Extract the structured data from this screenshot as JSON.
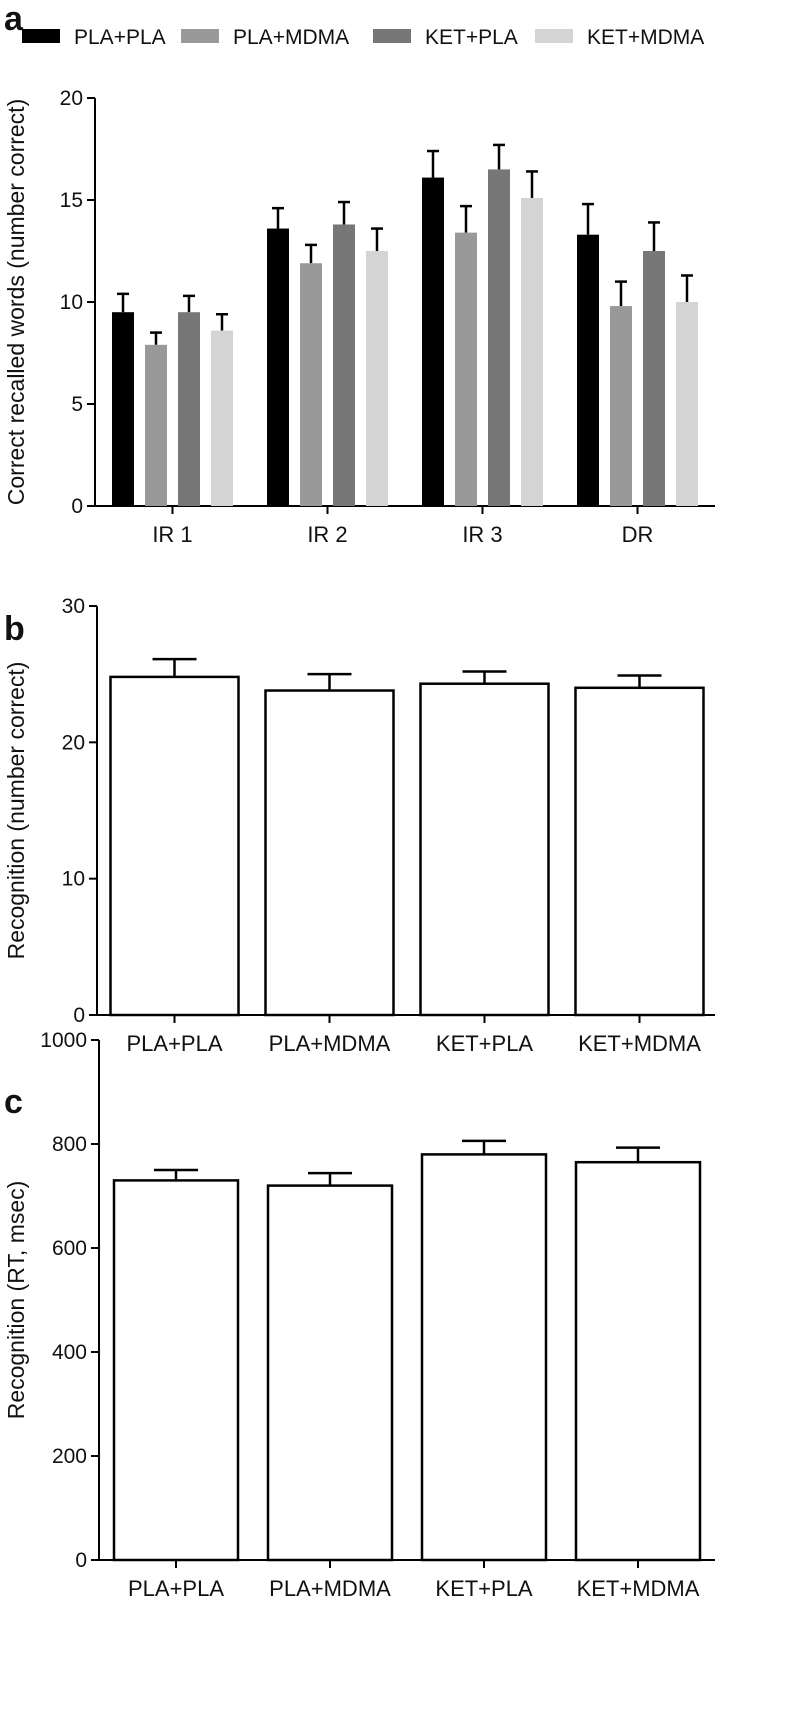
{
  "panels": {
    "a": {
      "letter": "a"
    },
    "b": {
      "letter": "b"
    },
    "c": {
      "letter": "c"
    }
  },
  "chart_data": [
    {
      "panel": "a",
      "type": "bar",
      "ylabel": "Correct recalled words (number correct)",
      "xlabel": "",
      "ylim": [
        0,
        20
      ],
      "yticks": [
        0,
        5,
        10,
        15,
        20
      ],
      "categories": [
        "IR 1",
        "IR 2",
        "IR 3",
        "DR"
      ],
      "legend": "top",
      "series": [
        {
          "name": "PLA+PLA",
          "color": "#000000",
          "values": [
            9.5,
            13.6,
            16.1,
            13.3
          ],
          "errors": [
            0.9,
            1.0,
            1.3,
            1.5
          ]
        },
        {
          "name": "PLA+MDMA",
          "color": "#999999",
          "values": [
            7.9,
            11.9,
            13.4,
            9.8
          ],
          "errors": [
            0.6,
            0.9,
            1.3,
            1.2
          ]
        },
        {
          "name": "KET+PLA",
          "color": "#777777",
          "values": [
            9.5,
            13.8,
            16.5,
            12.5
          ],
          "errors": [
            0.8,
            1.1,
            1.2,
            1.4
          ]
        },
        {
          "name": "KET+MDMA",
          "color": "#d4d4d4",
          "values": [
            8.6,
            12.5,
            15.1,
            10.0
          ],
          "errors": [
            0.8,
            1.1,
            1.3,
            1.3
          ]
        }
      ]
    },
    {
      "panel": "b",
      "type": "bar",
      "ylabel": "Recognition (number correct)",
      "xlabel": "",
      "ylim": [
        0,
        30
      ],
      "yticks": [
        0,
        10,
        20,
        30
      ],
      "categories": [
        "PLA+PLA",
        "PLA+MDMA",
        "KET+PLA",
        "KET+MDMA"
      ],
      "values": [
        24.8,
        23.8,
        24.3,
        24.0
      ],
      "errors": [
        1.3,
        1.2,
        0.9,
        0.9
      ]
    },
    {
      "panel": "c",
      "type": "bar",
      "ylabel": "Recognition (RT, msec)",
      "xlabel": "",
      "ylim": [
        0,
        1000
      ],
      "yticks": [
        0,
        200,
        400,
        600,
        800,
        1000
      ],
      "categories": [
        "PLA+PLA",
        "PLA+MDMA",
        "KET+PLA",
        "KET+MDMA"
      ],
      "values": [
        730,
        720,
        780,
        765
      ],
      "errors": [
        20,
        24,
        26,
        28
      ]
    }
  ]
}
